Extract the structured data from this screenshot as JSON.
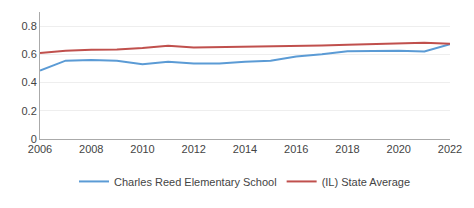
{
  "chart_data": {
    "type": "line",
    "x": [
      2006,
      2007,
      2008,
      2009,
      2010,
      2011,
      2012,
      2013,
      2014,
      2015,
      2016,
      2017,
      2018,
      2019,
      2020,
      2021,
      2022
    ],
    "series": [
      {
        "name": "Charles Reed Elementary School",
        "color": "#5b9bd5",
        "values": [
          0.485,
          0.555,
          0.56,
          0.555,
          0.53,
          0.548,
          0.535,
          0.535,
          0.548,
          0.555,
          0.585,
          0.6,
          0.622,
          0.625,
          0.625,
          0.62,
          0.672
        ]
      },
      {
        "name": "(IL) State Average",
        "color": "#c0504d",
        "values": [
          0.61,
          0.625,
          0.632,
          0.635,
          0.645,
          0.66,
          0.648,
          0.65,
          0.655,
          0.658,
          0.66,
          0.662,
          0.668,
          0.672,
          0.68,
          0.682,
          0.675
        ]
      }
    ],
    "xlim": [
      2006,
      2022
    ],
    "xticks": [
      2006,
      2008,
      2010,
      2012,
      2014,
      2016,
      2018,
      2020,
      2022
    ],
    "ylim": [
      0,
      0.9
    ],
    "yticks": [
      0,
      0.2,
      0.4,
      0.6,
      0.8
    ],
    "grid": true,
    "legend": "bottom"
  }
}
